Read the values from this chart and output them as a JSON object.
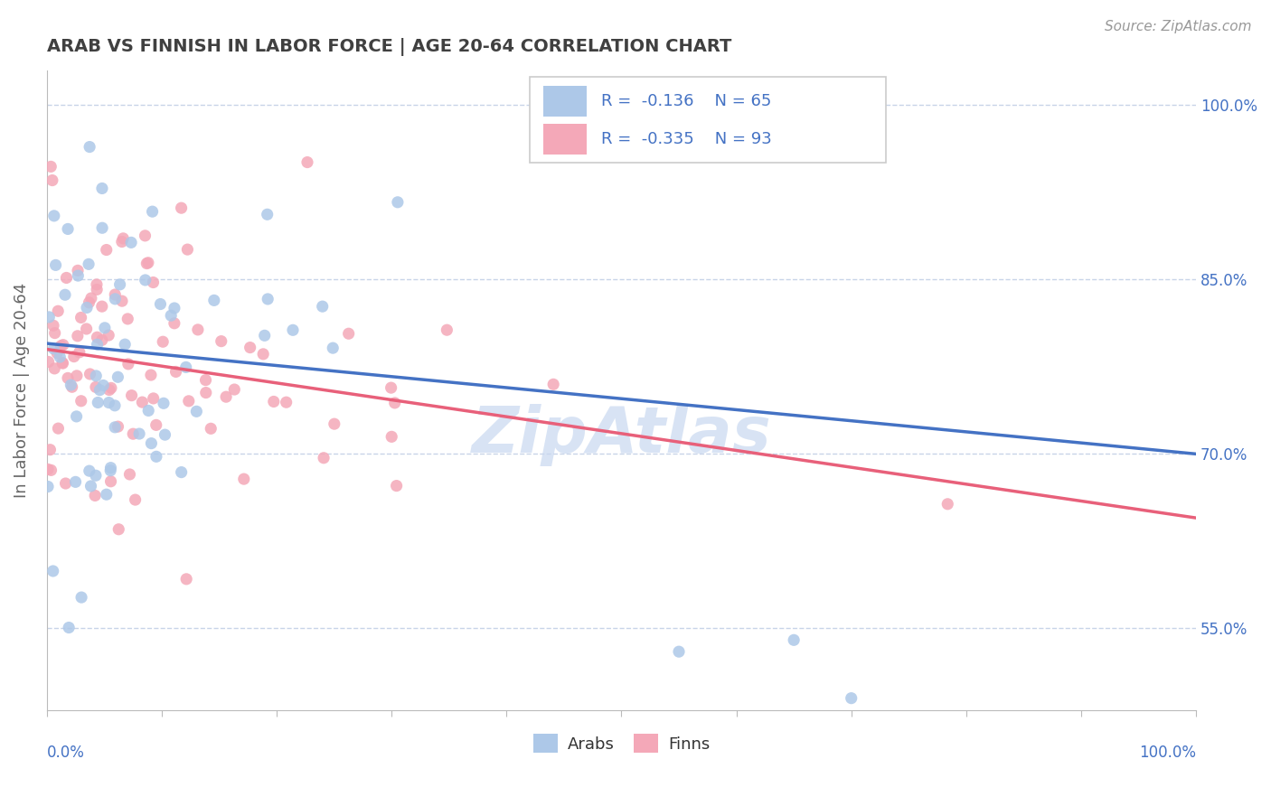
{
  "title": "ARAB VS FINNISH IN LABOR FORCE | AGE 20-64 CORRELATION CHART",
  "source_text": "Source: ZipAtlas.com",
  "ylabel": "In Labor Force | Age 20-64",
  "right_ytick_values": [
    55.0,
    70.0,
    85.0,
    100.0
  ],
  "right_ytick_labels": [
    "55.0%",
    "70.0%",
    "85.0%",
    "100.0%"
  ],
  "arab_R": "-0.136",
  "arab_N": "65",
  "finn_R": "-0.335",
  "finn_N": "93",
  "arab_color": "#adc8e8",
  "finn_color": "#f4a8b8",
  "arab_line_color": "#4472c4",
  "finn_line_color": "#e8607a",
  "legend_label_arab": "Arabs",
  "legend_label_finn": "Finns",
  "background_color": "#ffffff",
  "grid_color": "#c8d4e8",
  "title_color": "#404040",
  "watermark_text": "ZipAtlas",
  "watermark_color": "#c8d8f0",
  "xlim": [
    0,
    100
  ],
  "ylim": [
    48,
    103
  ],
  "arab_line_x0": 0,
  "arab_line_y0": 79.5,
  "arab_line_x1": 100,
  "arab_line_y1": 70.0,
  "finn_line_x0": 0,
  "finn_line_y0": 79.0,
  "finn_line_x1": 100,
  "finn_line_y1": 64.5
}
